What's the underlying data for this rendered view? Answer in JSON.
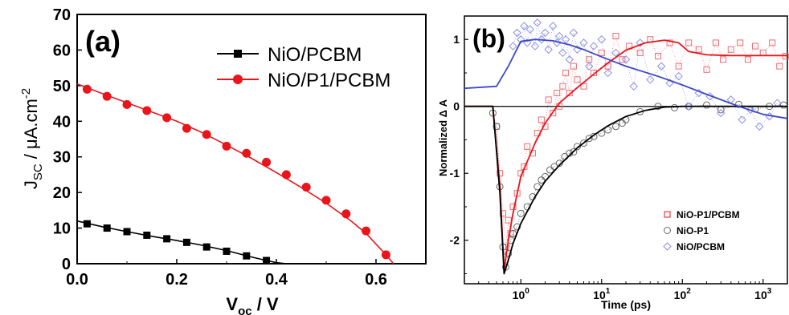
{
  "colors": {
    "black": "#000000",
    "red": "#e8151b",
    "blue": "#3d47c9",
    "red_marker": "#f06a72",
    "grey_marker": "#666666",
    "blue_marker": "#8a8fe0"
  },
  "chart_data": [
    {
      "type": "line",
      "panel_label": "(a)",
      "xlabel": {
        "main": "V",
        "sub": "oc",
        "rest": " / V"
      },
      "ylabel": {
        "main": "J",
        "sub": "SC",
        "rest": " / μA.cm",
        "sup": "-2"
      },
      "xlim": [
        0.0,
        0.7
      ],
      "ylim": [
        0,
        70
      ],
      "xticks": [
        0.0,
        0.2,
        0.4,
        0.6
      ],
      "xtick_labels": [
        "0.0",
        "0.2",
        "0.4",
        "0.6"
      ],
      "yticks": [
        0,
        10,
        20,
        30,
        40,
        50,
        60,
        70
      ],
      "ytick_labels": [
        "0",
        "10",
        "20",
        "30",
        "40",
        "50",
        "60",
        "70"
      ],
      "legend_position": "top-right",
      "series": [
        {
          "name": "NiO/PCBM",
          "color": "#000000",
          "marker": "square",
          "curve_x": [
            0.0,
            0.05,
            0.1,
            0.15,
            0.2,
            0.25,
            0.3,
            0.35,
            0.38,
            0.4,
            0.42
          ],
          "curve_y": [
            12.0,
            10.4,
            9.0,
            7.7,
            6.5,
            5.2,
            3.7,
            1.9,
            0.9,
            0.3,
            0.0
          ],
          "marker_x": [
            0.02,
            0.06,
            0.1,
            0.14,
            0.18,
            0.22,
            0.26,
            0.3,
            0.34,
            0.38
          ],
          "marker_y": [
            11.2,
            10.0,
            9.0,
            8.0,
            7.0,
            6.0,
            4.7,
            3.5,
            2.2,
            0.9
          ]
        },
        {
          "name": "NiO/P1/PCBM",
          "color": "#e8151b",
          "marker": "circle",
          "curve_x": [
            0.0,
            0.05,
            0.1,
            0.15,
            0.2,
            0.25,
            0.3,
            0.35,
            0.4,
            0.45,
            0.5,
            0.55,
            0.58,
            0.6,
            0.62,
            0.635
          ],
          "curve_y": [
            50.5,
            47.8,
            45.2,
            42.6,
            40.0,
            36.9,
            33.3,
            29.6,
            25.6,
            21.4,
            17.0,
            12.0,
            8.5,
            5.5,
            2.5,
            0.0
          ],
          "marker_x": [
            0.02,
            0.06,
            0.1,
            0.14,
            0.18,
            0.22,
            0.26,
            0.3,
            0.34,
            0.38,
            0.42,
            0.46,
            0.5,
            0.54,
            0.58,
            0.62
          ],
          "marker_y": [
            49.0,
            47.0,
            44.7,
            43.0,
            41.0,
            38.0,
            36.3,
            33.0,
            31.0,
            28.5,
            25.0,
            21.5,
            17.8,
            14.0,
            9.2,
            2.5
          ]
        }
      ]
    },
    {
      "type": "scatter",
      "panel_label": "(b)",
      "xlabel": "Time (ps)",
      "ylabel": "Normalized Δ A",
      "x_scale": "log",
      "xlim": [
        0.2,
        2000
      ],
      "ylim": [
        -2.65,
        1.35
      ],
      "yticks": [
        1,
        0,
        -1,
        -2
      ],
      "ytick_labels": [
        "1",
        "0",
        "-1",
        "-2"
      ],
      "xtick_labels": [
        {
          "base": "10",
          "exp": "0",
          "value": 1
        },
        {
          "base": "10",
          "exp": "1",
          "value": 10
        },
        {
          "base": "10",
          "exp": "2",
          "value": 100
        },
        {
          "base": "10",
          "exp": "3",
          "value": 1000
        }
      ],
      "baseline_y": 0,
      "legend_position": "bottom-right",
      "series": [
        {
          "name": "NiO-P1/PCBM",
          "color": "#e8151b",
          "marker": "square",
          "fit_x": [
            0.2,
            0.45,
            0.55,
            0.62,
            0.7,
            0.8,
            1.0,
            1.5,
            2,
            3,
            5,
            8,
            12,
            20,
            35,
            60,
            90,
            120,
            200,
            400,
            1000,
            2000
          ],
          "fit_y": [
            0.0,
            0.0,
            -1.2,
            -2.45,
            -2.0,
            -1.6,
            -1.05,
            -0.55,
            -0.25,
            0.05,
            0.28,
            0.48,
            0.65,
            0.84,
            0.95,
            0.99,
            0.95,
            0.82,
            0.77,
            0.76,
            0.76,
            0.76
          ],
          "scatter_x": [
            0.5,
            0.55,
            0.6,
            0.65,
            0.7,
            0.75,
            0.8,
            0.9,
            1.0,
            1.1,
            1.2,
            1.4,
            1.6,
            1.8,
            2.0,
            2.2,
            2.5,
            2.8,
            3.0,
            3.3,
            3.6,
            4.0,
            4.5,
            5.0,
            6,
            7,
            8,
            10,
            12,
            15,
            18,
            22,
            30,
            40,
            50,
            70,
            90,
            120,
            160,
            200,
            260,
            320,
            400,
            520,
            650,
            800,
            1000,
            1300,
            1600,
            1900
          ],
          "scatter_y": [
            -0.3,
            -1.0,
            -1.6,
            -2.1,
            -1.7,
            -1.9,
            -1.5,
            -1.3,
            -1.0,
            -0.9,
            -0.6,
            -0.7,
            -0.4,
            -0.2,
            -0.3,
            0.1,
            -0.1,
            0.2,
            0.0,
            0.3,
            0.5,
            0.2,
            0.6,
            0.4,
            0.3,
            0.7,
            0.5,
            0.8,
            0.6,
            1.05,
            0.7,
            0.9,
            0.8,
            1.0,
            0.75,
            0.95,
            0.6,
            0.95,
            0.85,
            0.55,
            0.95,
            0.7,
            0.85,
            0.95,
            0.7,
            0.9,
            0.8,
            0.95,
            0.6,
            0.75
          ]
        },
        {
          "name": "NiO-P1",
          "color": "#000000",
          "marker": "circle",
          "fit_x": [
            0.2,
            0.45,
            0.55,
            0.62,
            0.68,
            0.8,
            1.0,
            1.5,
            2,
            3,
            5,
            8,
            12,
            20,
            35,
            60,
            100,
            2000
          ],
          "fit_y": [
            0.0,
            0.0,
            -1.3,
            -2.5,
            -2.35,
            -2.05,
            -1.75,
            -1.35,
            -1.12,
            -0.88,
            -0.62,
            -0.43,
            -0.29,
            -0.15,
            -0.06,
            -0.01,
            0.0,
            0.0
          ],
          "scatter_x": [
            0.45,
            0.5,
            0.55,
            0.6,
            0.65,
            0.7,
            0.75,
            0.8,
            0.9,
            1.0,
            1.2,
            1.4,
            1.6,
            1.8,
            2.0,
            2.3,
            2.6,
            3.0,
            3.5,
            4.0,
            4.5,
            5.0,
            6,
            7,
            8,
            10,
            12,
            15,
            18,
            20,
            30,
            50,
            80,
            120,
            200,
            300,
            500,
            800,
            1200,
            1800
          ],
          "scatter_y": [
            -0.1,
            -0.3,
            -1.2,
            -2.1,
            -2.4,
            -2.2,
            -2.0,
            -1.9,
            -1.8,
            -1.6,
            -1.5,
            -1.35,
            -1.2,
            -1.1,
            -1.05,
            -0.95,
            -0.9,
            -0.85,
            -0.75,
            -0.7,
            -0.68,
            -0.6,
            -0.55,
            -0.48,
            -0.45,
            -0.4,
            -0.35,
            -0.3,
            -0.25,
            -0.2,
            -0.08,
            0.0,
            -0.02,
            0.0,
            0.02,
            -0.05,
            0.03,
            -0.04,
            0.0,
            0.02
          ]
        },
        {
          "name": "NiO/PCBM",
          "color": "#3d47c9",
          "marker": "diamond",
          "fit_x": [
            0.2,
            0.5,
            0.7,
            1.0,
            1.5,
            2.5,
            4,
            6,
            10,
            20,
            50,
            100,
            200,
            500,
            1000,
            2000
          ],
          "fit_y": [
            0.27,
            0.3,
            0.6,
            0.97,
            1.0,
            0.98,
            0.92,
            0.85,
            0.74,
            0.6,
            0.45,
            0.32,
            0.18,
            0.0,
            -0.12,
            -0.18
          ],
          "scatter_x": [
            0.8,
            0.9,
            1.0,
            1.1,
            1.2,
            1.3,
            1.5,
            1.6,
            1.8,
            2.0,
            2.2,
            2.5,
            2.8,
            3.0,
            3.3,
            3.6,
            4.0,
            4.5,
            5.0,
            6,
            7,
            8,
            10,
            12,
            15,
            20,
            25,
            30,
            40,
            55,
            70,
            90,
            120,
            160,
            220,
            300,
            400,
            550,
            700,
            900,
            1200,
            1500
          ],
          "scatter_y": [
            0.9,
            1.1,
            1.0,
            1.2,
            0.95,
            1.15,
            0.9,
            1.25,
            1.0,
            1.1,
            0.85,
            1.2,
            0.95,
            1.05,
            0.8,
            1.0,
            0.7,
            1.1,
            0.85,
            0.95,
            0.6,
            0.9,
            1.0,
            0.5,
            0.8,
            0.7,
            0.3,
            0.95,
            0.4,
            0.6,
            0.35,
            0.45,
            0.0,
            0.2,
            0.15,
            -0.1,
            0.1,
            -0.2,
            -0.05,
            -0.3,
            -0.15,
            0.05
          ]
        }
      ]
    }
  ]
}
